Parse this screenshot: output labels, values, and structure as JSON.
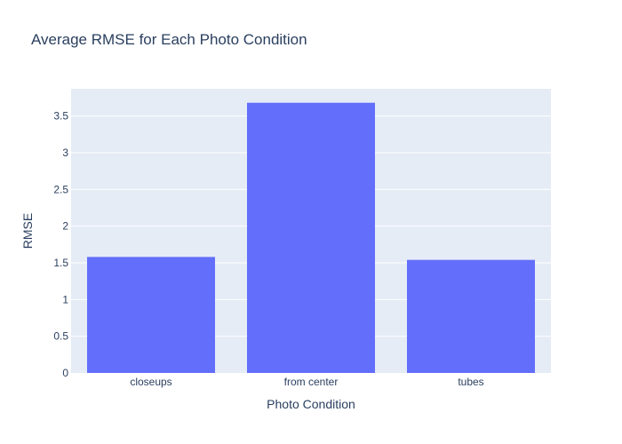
{
  "chart_data": {
    "type": "bar",
    "title": "Average RMSE for Each Photo Condition",
    "xlabel": "Photo Condition",
    "ylabel": "RMSE",
    "categories": [
      "closeups",
      "from center",
      "tubes"
    ],
    "values": [
      1.58,
      3.68,
      1.54
    ],
    "ylim": [
      0,
      3.87
    ],
    "yticks": [
      0,
      0.5,
      1,
      1.5,
      2,
      2.5,
      3,
      3.5
    ],
    "ytick_labels": [
      "0",
      "0.5",
      "1",
      "1.5",
      "2",
      "2.5",
      "3",
      "3.5"
    ],
    "grid": true,
    "legend": "none"
  },
  "colors": {
    "bar": "#636efa",
    "plot_background": "#e5ecf6",
    "grid": "#ffffff",
    "text": "#2a3f5f"
  }
}
